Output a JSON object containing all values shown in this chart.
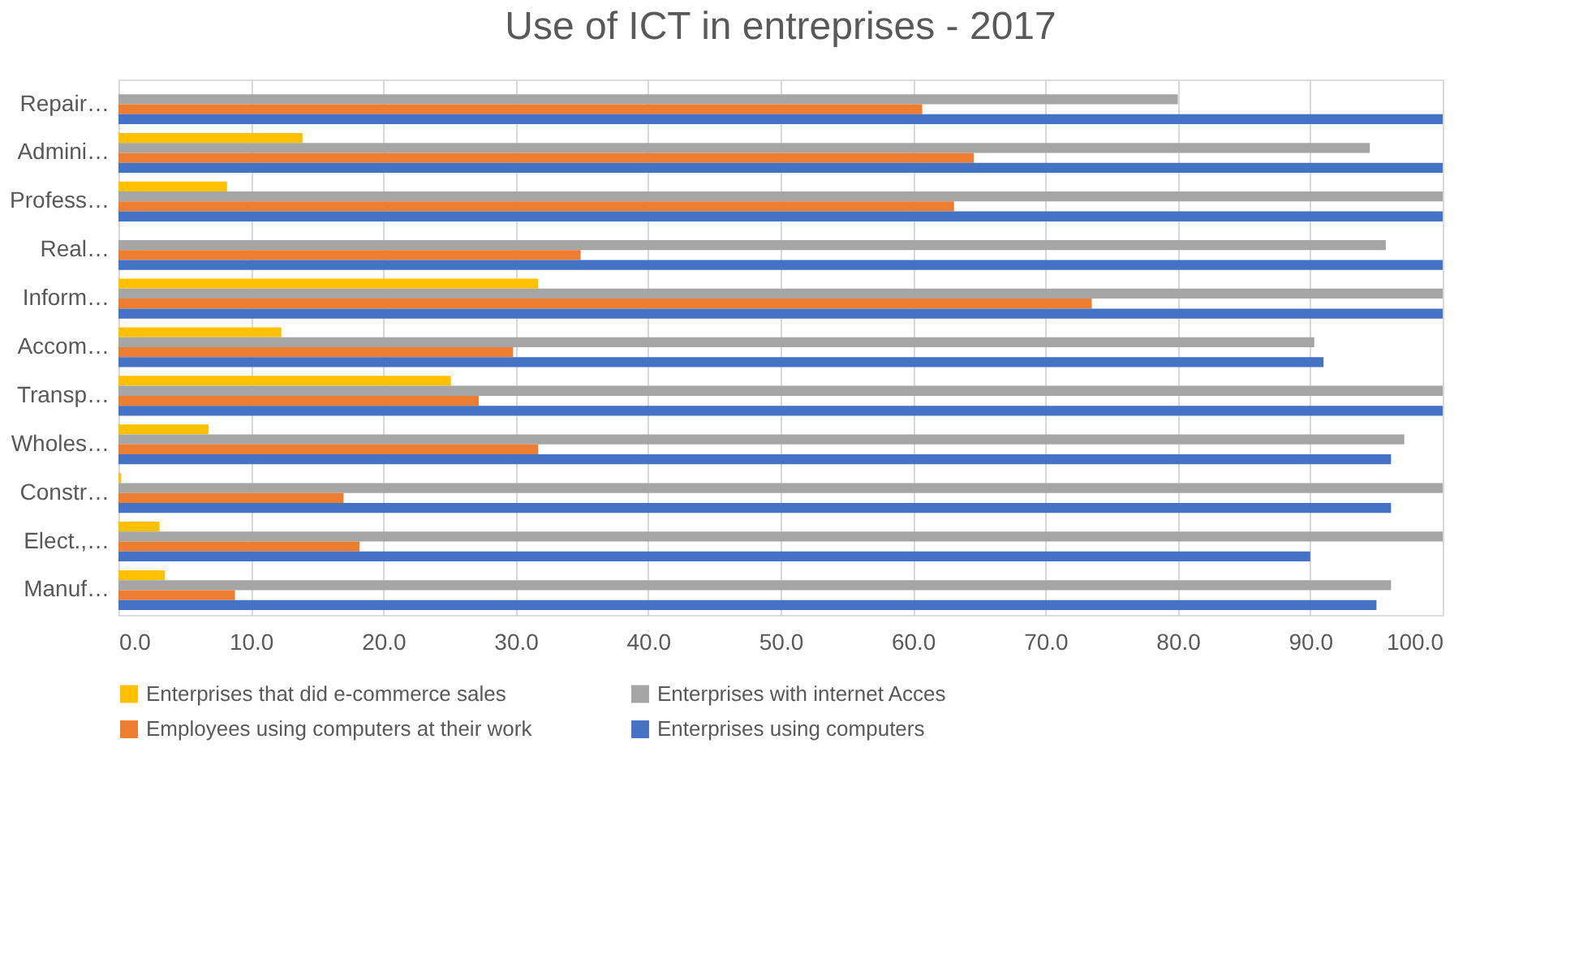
{
  "chart_data": {
    "type": "bar",
    "orientation": "horizontal",
    "title": "Use of ICT in entreprises - 2017",
    "categories": [
      "Repair…",
      "Admini…",
      "Profess…",
      "Real…",
      "Inform…",
      "Accom…",
      "Transp…",
      "Wholes…",
      "Constr…",
      "Elect.,…",
      "Manuf…"
    ],
    "series": [
      {
        "name": "Enterprises that did e-commerce sales",
        "color": "#ffc000",
        "values": [
          null,
          13.9,
          8.2,
          null,
          31.7,
          12.3,
          25.1,
          6.8,
          0.2,
          3.1,
          3.5
        ]
      },
      {
        "name": "Enterprises with internet Acces",
        "color": "#a5a5a5",
        "values": [
          80.0,
          94.5,
          100,
          95.7,
          100,
          90.3,
          100,
          97.1,
          100,
          100,
          96.1
        ]
      },
      {
        "name": "Employees using computers at their work",
        "color": "#ed7d31",
        "values": [
          60.7,
          64.6,
          63.1,
          34.9,
          73.5,
          29.8,
          27.2,
          31.7,
          17.0,
          18.2,
          8.8
        ]
      },
      {
        "name": "Enterprises using computers",
        "color": "#4472c4",
        "values": [
          100,
          100,
          100,
          100,
          100,
          91.0,
          100,
          96.1,
          96.1,
          90.0,
          95.0
        ]
      }
    ],
    "xlim": [
      0,
      100
    ],
    "xticks": [
      {
        "value": 0,
        "label": "0.0"
      },
      {
        "value": 10,
        "label": "10.0"
      },
      {
        "value": 20,
        "label": "20.0"
      },
      {
        "value": 30,
        "label": "30.0"
      },
      {
        "value": 40,
        "label": "40.0"
      },
      {
        "value": 50,
        "label": "50.0"
      },
      {
        "value": 60,
        "label": "60.0"
      },
      {
        "value": 70,
        "label": "70.0"
      },
      {
        "value": 80,
        "label": "80.0"
      },
      {
        "value": 90,
        "label": "90.0"
      },
      {
        "value": 100,
        "label": "100.0"
      }
    ],
    "grid": "x",
    "legend": "bottom"
  }
}
